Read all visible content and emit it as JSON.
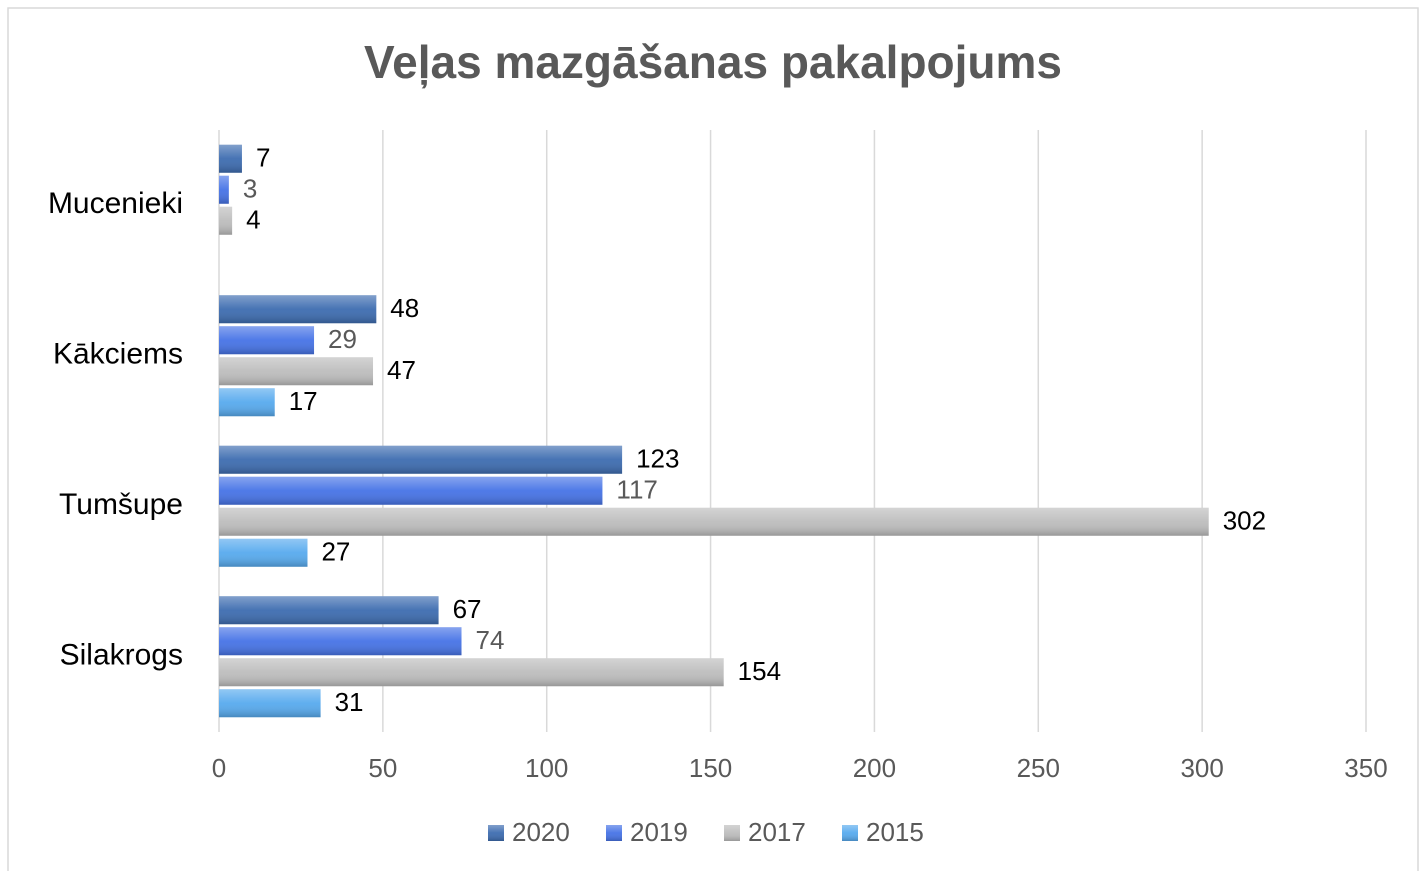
{
  "chart_data": {
    "type": "bar",
    "orientation": "horizontal",
    "title": "Veļas mazgāšanas pakalpojums",
    "categories": [
      "Mucenieki",
      "Kākciems",
      "Tumšupe",
      "Silakrogs"
    ],
    "series": [
      {
        "name": "2020",
        "color": "#3d6cb0",
        "values": [
          7,
          48,
          123,
          67
        ]
      },
      {
        "name": "2019",
        "color": "#4673e6",
        "values": [
          3,
          29,
          117,
          74
        ]
      },
      {
        "name": "2017",
        "color": "#bdbdbd",
        "values": [
          4,
          47,
          302,
          154
        ]
      },
      {
        "name": "2015",
        "color": "#57aaee",
        "values": [
          null,
          17,
          27,
          31
        ]
      }
    ],
    "xlim": [
      0,
      350
    ],
    "xticks": [
      0,
      50,
      100,
      150,
      200,
      250,
      300,
      350
    ],
    "grid": true,
    "legend": "bottom"
  }
}
